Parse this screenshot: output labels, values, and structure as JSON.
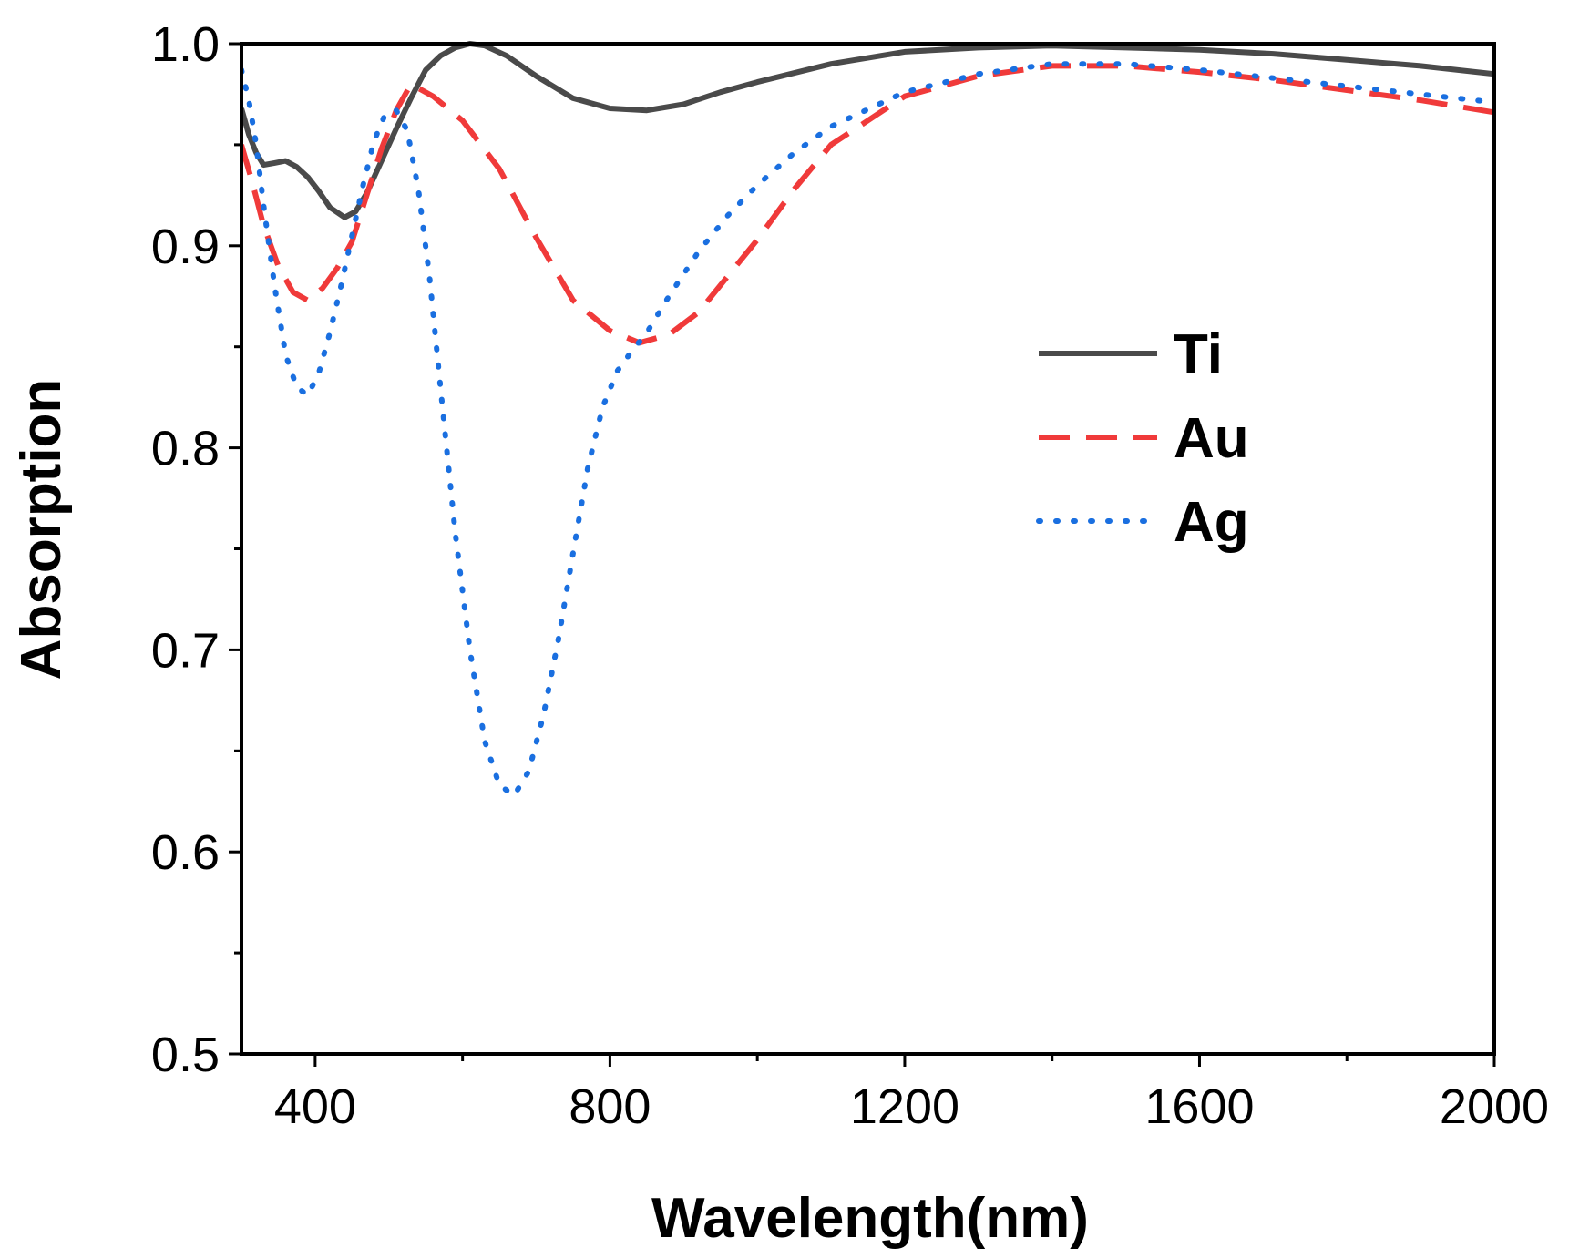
{
  "chart_data": {
    "type": "line",
    "title": "",
    "xlabel": "Wavelength(nm)",
    "ylabel": "Absorption",
    "xlim": [
      300,
      2000
    ],
    "ylim": [
      0.5,
      1.0
    ],
    "grid": false,
    "legend_position": "center-right",
    "x_ticks": [
      {
        "value": 400,
        "label": "400"
      },
      {
        "value": 800,
        "label": "800"
      },
      {
        "value": 1200,
        "label": "1200"
      },
      {
        "value": 1600,
        "label": "1600"
      },
      {
        "value": 2000,
        "label": "2000"
      }
    ],
    "x_minor_ticks": [
      600,
      1000,
      1400,
      1800
    ],
    "y_ticks": [
      {
        "value": 0.5,
        "label": "0.5"
      },
      {
        "value": 0.6,
        "label": "0.6"
      },
      {
        "value": 0.7,
        "label": "0.7"
      },
      {
        "value": 0.8,
        "label": "0.8"
      },
      {
        "value": 0.9,
        "label": "0.9"
      },
      {
        "value": 1.0,
        "label": "1.0"
      }
    ],
    "y_minor_ticks": [
      0.55,
      0.65,
      0.75,
      0.85,
      0.95
    ],
    "series": [
      {
        "name": "Ti",
        "color": "#4a4a4a",
        "style": "solid",
        "x": [
          300,
          310,
          320,
          330,
          345,
          360,
          375,
          390,
          405,
          420,
          440,
          455,
          470,
          490,
          510,
          530,
          550,
          570,
          590,
          610,
          630,
          660,
          700,
          750,
          800,
          850,
          900,
          950,
          1000,
          1100,
          1200,
          1300,
          1400,
          1500,
          1600,
          1700,
          1800,
          1900,
          2000
        ],
        "y": [
          0.968,
          0.955,
          0.946,
          0.94,
          0.941,
          0.942,
          0.939,
          0.934,
          0.927,
          0.919,
          0.914,
          0.917,
          0.926,
          0.942,
          0.958,
          0.973,
          0.987,
          0.994,
          0.998,
          1.0,
          0.999,
          0.994,
          0.984,
          0.973,
          0.968,
          0.967,
          0.97,
          0.976,
          0.981,
          0.99,
          0.996,
          0.998,
          0.999,
          0.998,
          0.997,
          0.995,
          0.992,
          0.989,
          0.985
        ]
      },
      {
        "name": "Au",
        "color": "#f03a3a",
        "style": "dashed",
        "x": [
          300,
          315,
          330,
          350,
          370,
          390,
          410,
          430,
          450,
          470,
          490,
          510,
          530,
          560,
          600,
          650,
          700,
          750,
          800,
          840,
          880,
          920,
          960,
          1000,
          1050,
          1100,
          1200,
          1300,
          1400,
          1500,
          1600,
          1700,
          1800,
          1900,
          2000
        ],
        "y": [
          0.95,
          0.931,
          0.91,
          0.89,
          0.877,
          0.873,
          0.879,
          0.889,
          0.902,
          0.925,
          0.948,
          0.967,
          0.98,
          0.974,
          0.962,
          0.938,
          0.904,
          0.873,
          0.858,
          0.852,
          0.856,
          0.867,
          0.885,
          0.903,
          0.928,
          0.95,
          0.974,
          0.984,
          0.989,
          0.989,
          0.986,
          0.982,
          0.977,
          0.972,
          0.966
        ]
      },
      {
        "name": "Ag",
        "color": "#1a6fe0",
        "style": "dotted",
        "x": [
          300,
          310,
          320,
          330,
          345,
          360,
          375,
          390,
          405,
          420,
          435,
          450,
          465,
          480,
          495,
          510,
          525,
          540,
          555,
          570,
          590,
          610,
          630,
          650,
          670,
          690,
          710,
          730,
          750,
          770,
          790,
          810,
          830,
          850,
          880,
          920,
          960,
          1000,
          1050,
          1100,
          1200,
          1300,
          1400,
          1500,
          1600,
          1700,
          1800,
          1900,
          2000
        ],
        "y": [
          0.987,
          0.972,
          0.95,
          0.92,
          0.88,
          0.846,
          0.83,
          0.826,
          0.837,
          0.857,
          0.88,
          0.905,
          0.93,
          0.952,
          0.965,
          0.967,
          0.957,
          0.928,
          0.885,
          0.83,
          0.758,
          0.7,
          0.655,
          0.633,
          0.628,
          0.64,
          0.668,
          0.705,
          0.748,
          0.79,
          0.82,
          0.838,
          0.848,
          0.857,
          0.875,
          0.897,
          0.915,
          0.93,
          0.946,
          0.959,
          0.976,
          0.985,
          0.99,
          0.99,
          0.987,
          0.983,
          0.979,
          0.975,
          0.971
        ]
      }
    ]
  }
}
